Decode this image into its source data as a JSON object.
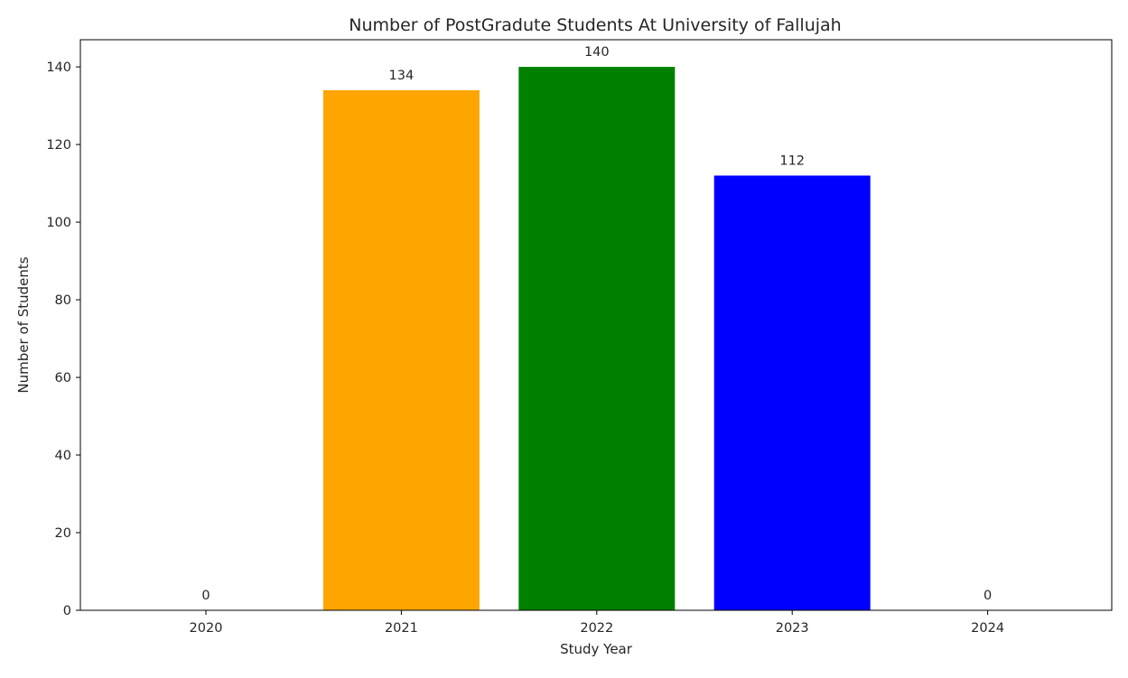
{
  "chart_data": {
    "type": "bar",
    "title": "Number of PostGradute Students At University of Fallujah",
    "xlabel": "Study Year",
    "ylabel": "Number of Students",
    "categories": [
      "2020",
      "2021",
      "2022",
      "2023",
      "2024"
    ],
    "values": [
      0,
      134,
      140,
      112,
      0
    ],
    "data_labels": [
      "0",
      "134",
      "140",
      "112",
      "0"
    ],
    "colors": [
      "#FFA500",
      "#FFA500",
      "#008000",
      "#0000FF",
      "#0000FF"
    ],
    "ylim": [
      0,
      147
    ],
    "yticks": [
      0,
      20,
      40,
      60,
      80,
      100,
      120,
      140
    ],
    "grid": false,
    "legend": false
  }
}
